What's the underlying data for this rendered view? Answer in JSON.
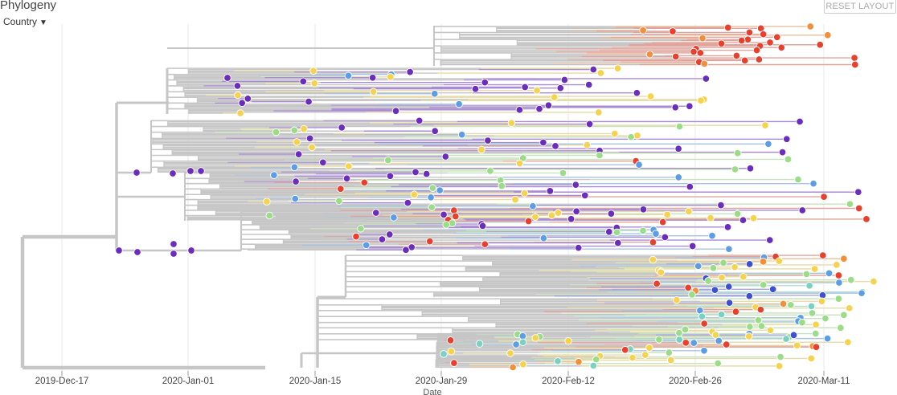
{
  "panel": {
    "title": "Phylogeny",
    "color_by": "Country",
    "reset_label": "RESET LAYOUT"
  },
  "chart_data": {
    "type": "phylogenetic-tree",
    "xlabel": "Date",
    "x_ticks": [
      "2019-Dec-17",
      "2020-Jan-01",
      "2020-Jan-15",
      "2020-Jan-29",
      "2020-Feb-12",
      "2020-Feb-26",
      "2020-Mar-11"
    ],
    "x_range": [
      "2019-12-09",
      "2020-03-19"
    ],
    "grid": true,
    "branch_color": "#c6c6c6",
    "tip_colors": [
      "#6b2dbb",
      "#5c9ee6",
      "#9bdc88",
      "#f5d34f",
      "#f28f3a",
      "#e8402c",
      "#3f4fd1",
      "#7ad1c3"
    ]
  }
}
